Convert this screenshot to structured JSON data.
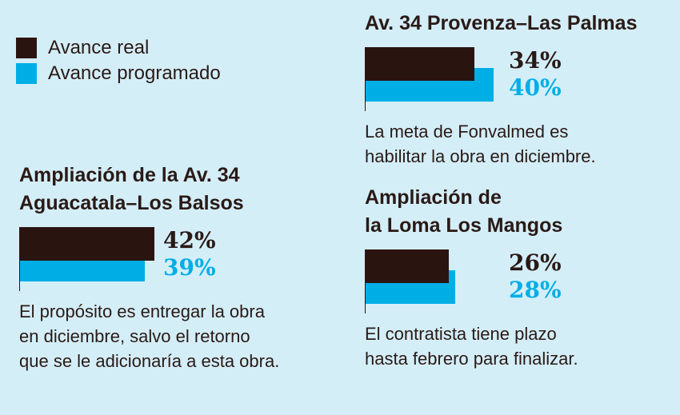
{
  "colors": {
    "background": "#d4eef8",
    "real": "#2a1410",
    "programado": "#00aee6"
  },
  "legend": {
    "items": [
      {
        "label": "Avance real",
        "color": "#2a1410"
      },
      {
        "label": "Avance programado",
        "color": "#00aee6"
      }
    ]
  },
  "chart_data": [
    {
      "type": "bar",
      "title": "Ampliación de la Av. 34 Aguacatala–Los Balsos",
      "title_lines": [
        "Ampliación de la Av. 34",
        "Aguacatala–Los Balsos"
      ],
      "series": [
        {
          "name": "Avance real",
          "value": 42,
          "label": "42%"
        },
        {
          "name": "Avance programado",
          "value": 39,
          "label": "39%"
        }
      ],
      "note_lines": [
        "El propósito es entregar la obra",
        "en diciembre, salvo el retorno",
        "que se le adicionaría a esta obra."
      ]
    },
    {
      "type": "bar",
      "title": "Av. 34 Provenza–Las Palmas",
      "title_lines": [
        "Av. 34 Provenza–Las Palmas"
      ],
      "series": [
        {
          "name": "Avance real",
          "value": 34,
          "label": "34%"
        },
        {
          "name": "Avance programado",
          "value": 40,
          "label": "40%"
        }
      ],
      "note_lines": [
        "La meta de Fonvalmed es",
        "habilitar la obra en diciembre."
      ]
    },
    {
      "type": "bar",
      "title": "Ampliación de la Loma Los Mangos",
      "title_lines": [
        "Ampliación de",
        "la Loma Los Mangos"
      ],
      "series": [
        {
          "name": "Avance real",
          "value": 26,
          "label": "26%"
        },
        {
          "name": "Avance programado",
          "value": 28,
          "label": "28%"
        }
      ],
      "note_lines": [
        "El contratista tiene plazo",
        "hasta febrero para finalizar."
      ]
    }
  ]
}
